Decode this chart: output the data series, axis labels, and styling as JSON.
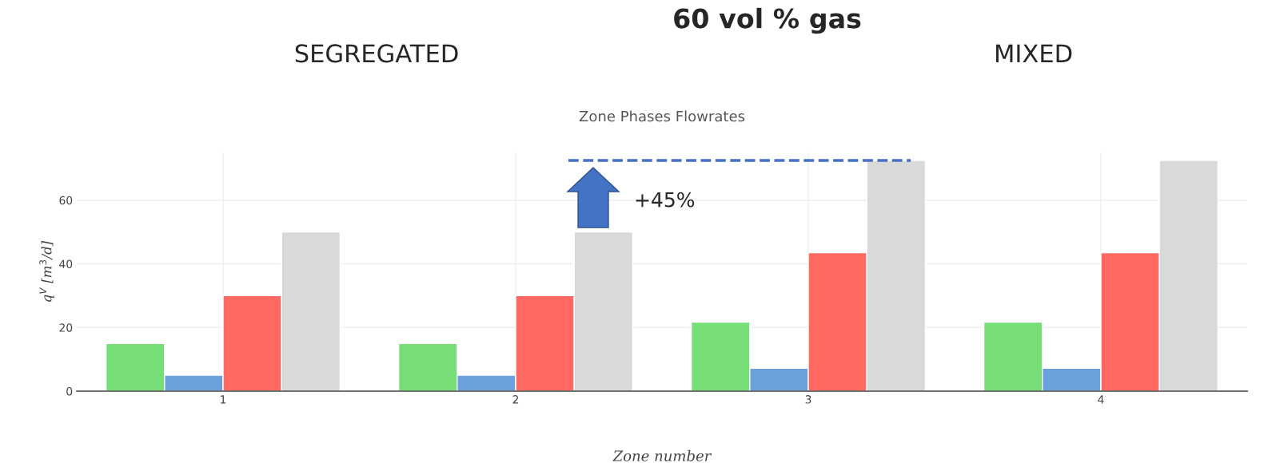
{
  "chart_data": {
    "type": "bar",
    "title": "Zone Phases Flowrates",
    "annotations": [
      "60 vol % gas",
      "SEGREGATED",
      "MIXED",
      "+45%"
    ],
    "xlabel": "Zone number",
    "ylabel": "q$^{V}$ [m$^{3}$/d]",
    "categories": [
      "1",
      "2",
      "3",
      "4"
    ],
    "series": [
      {
        "color": "#77dd77",
        "values": [
          15,
          15,
          21.7,
          21.7
        ]
      },
      {
        "color": "#6ca0dc",
        "values": [
          5,
          5,
          7.2,
          7.2
        ]
      },
      {
        "color": "#ff6961",
        "values": [
          30,
          30,
          43.5,
          43.5
        ]
      },
      {
        "color": "#d9d9d9",
        "values": [
          50,
          50,
          72.5,
          72.5
        ]
      }
    ],
    "ylim": [
      0,
      75
    ],
    "yticks": [
      0,
      20,
      40,
      60
    ],
    "grid": true,
    "ref_lines": [
      {
        "axis": "y",
        "value": 72.5,
        "color": "#4472c4",
        "line_style": "dashed"
      }
    ]
  }
}
